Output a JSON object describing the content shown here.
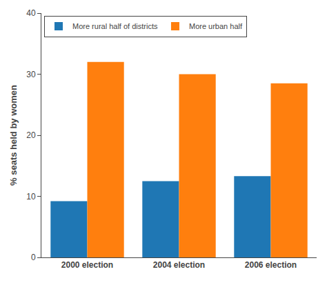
{
  "chart_data": {
    "type": "bar",
    "categories": [
      "2000 election",
      "2004 election",
      "2006 election"
    ],
    "series": [
      {
        "name": "More rural half of districts",
        "values": [
          9.2,
          12.5,
          13.3
        ]
      },
      {
        "name": "More urban half",
        "values": [
          32.0,
          30.0,
          28.5
        ]
      }
    ],
    "ylabel": "% seats held by women",
    "ylim": [
      0,
      40
    ],
    "yticks": [
      0,
      10,
      20,
      30,
      40
    ],
    "grid": false,
    "legend": "upper left"
  }
}
